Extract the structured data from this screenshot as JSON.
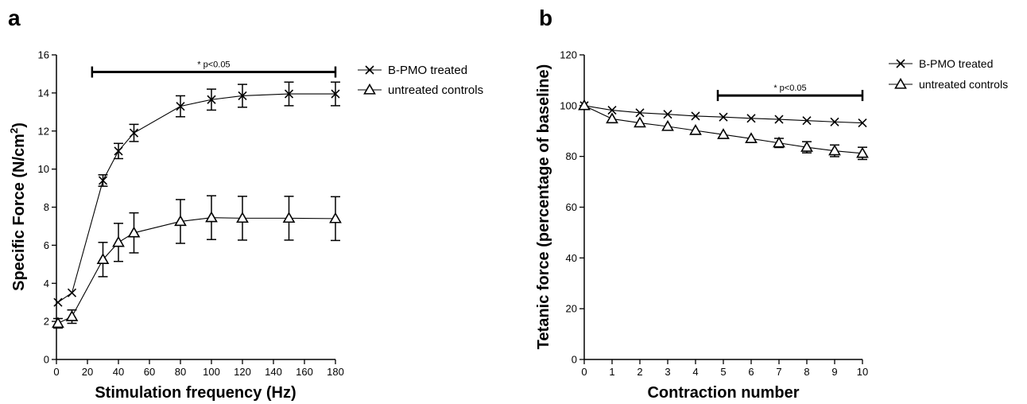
{
  "figure": {
    "panel_a_letter": "a",
    "panel_b_letter": "b"
  },
  "chart_data": [
    {
      "type": "line",
      "panel": "a",
      "xlabel": "Stimulation frequency (Hz)",
      "ylabel_main": "Specific Force (N/cm",
      "ylabel_sup": "2",
      "ylabel_close": ")",
      "xlim": [
        0,
        180
      ],
      "ylim": [
        0,
        16
      ],
      "xticks": [
        0,
        20,
        40,
        60,
        80,
        100,
        120,
        140,
        160,
        180
      ],
      "yticks": [
        0,
        2,
        4,
        6,
        8,
        10,
        12,
        14,
        16
      ],
      "grid": false,
      "legend_position": "top-right",
      "significance": {
        "label": "* p<0.05",
        "x_start": 23,
        "x_end": 180,
        "y": 15.1
      },
      "series": [
        {
          "name": "B-PMO treated",
          "marker": "x",
          "x": [
            1,
            10,
            30,
            40,
            50,
            80,
            100,
            120,
            150,
            180
          ],
          "y": [
            3.0,
            3.5,
            9.4,
            10.95,
            11.9,
            13.3,
            13.65,
            13.85,
            13.95,
            13.95
          ],
          "err": [
            0,
            0,
            0.3,
            0.4,
            0.45,
            0.55,
            0.55,
            0.6,
            0.62,
            0.62
          ]
        },
        {
          "name": "untreated controls",
          "marker": "triangle",
          "x": [
            1,
            10,
            30,
            40,
            50,
            80,
            100,
            120,
            150,
            180
          ],
          "y": [
            1.9,
            2.25,
            5.25,
            6.15,
            6.65,
            7.25,
            7.45,
            7.42,
            7.42,
            7.4
          ],
          "err": [
            0.25,
            0.35,
            0.9,
            1.0,
            1.05,
            1.15,
            1.15,
            1.15,
            1.15,
            1.15
          ]
        }
      ]
    },
    {
      "type": "line",
      "panel": "b",
      "xlabel": "Contraction number",
      "ylabel_main": "Tetanic force (percentage of baseline)",
      "xlim": [
        0,
        10
      ],
      "ylim": [
        0,
        120
      ],
      "xticks": [
        0,
        1,
        2,
        3,
        4,
        5,
        6,
        7,
        8,
        9,
        10
      ],
      "yticks": [
        0,
        20,
        40,
        60,
        80,
        100,
        120
      ],
      "grid": false,
      "legend_position": "top-right",
      "significance": {
        "label": "* p<0.05",
        "x_start": 4.8,
        "x_end": 10,
        "y": 104
      },
      "series": [
        {
          "name": "B-PMO treated",
          "marker": "x",
          "x": [
            0,
            1,
            2,
            3,
            4,
            5,
            6,
            7,
            8,
            9,
            10
          ],
          "y": [
            100,
            98.2,
            97.2,
            96.6,
            95.9,
            95.5,
            95.0,
            94.6,
            94.1,
            93.6,
            93.2
          ],
          "err": [
            0,
            0,
            0,
            0,
            0,
            0,
            0,
            0,
            0,
            0,
            0
          ]
        },
        {
          "name": "untreated controls",
          "marker": "triangle",
          "x": [
            0,
            1,
            2,
            3,
            4,
            5,
            6,
            7,
            8,
            9,
            10
          ],
          "y": [
            100,
            94.8,
            93.2,
            91.8,
            90.2,
            88.6,
            87.0,
            85.3,
            83.6,
            82.2,
            81.2
          ],
          "err": [
            0,
            0,
            0,
            0,
            0,
            0,
            0,
            1.8,
            2.2,
            2.3,
            2.4
          ]
        }
      ]
    }
  ]
}
